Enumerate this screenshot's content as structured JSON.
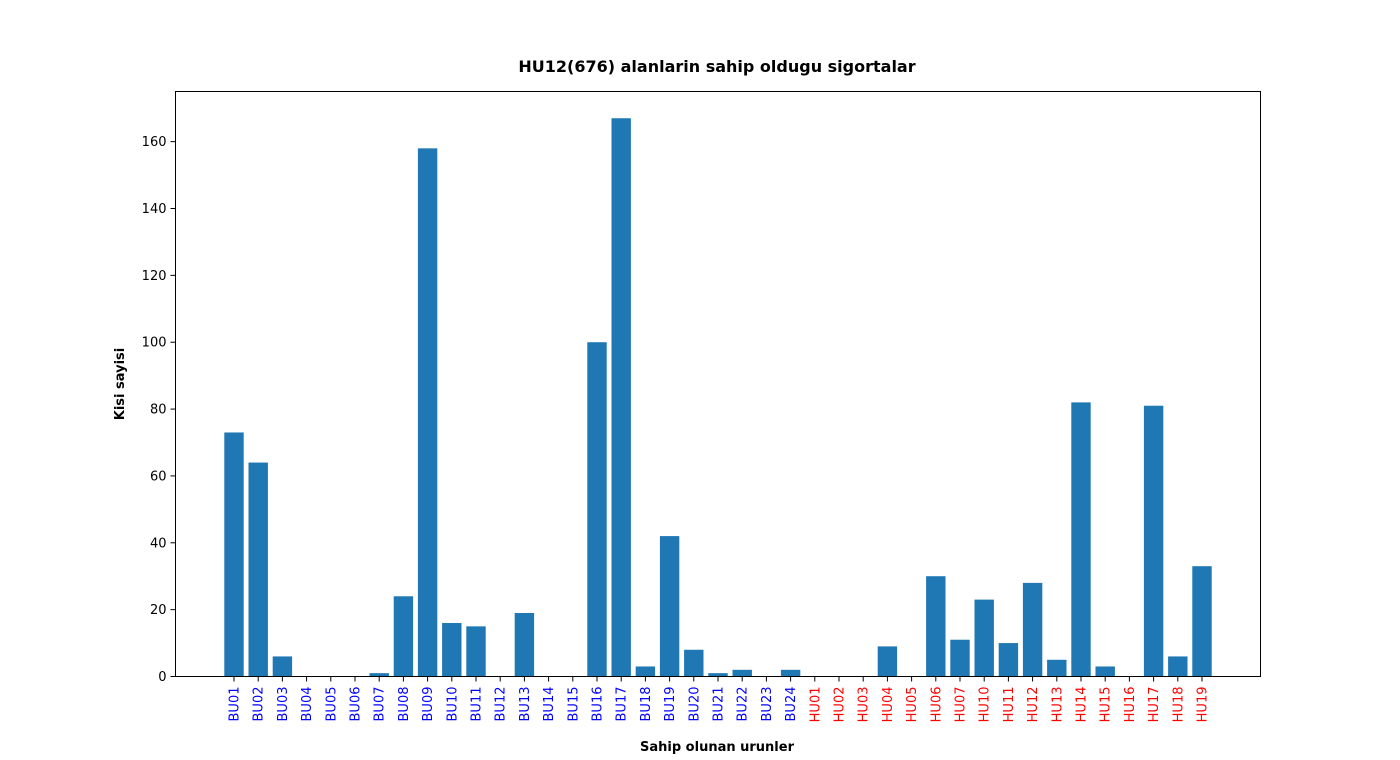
{
  "chart_data": {
    "type": "bar",
    "title": "HU12(676) alanlarin sahip oldugu sigortalar",
    "xlabel": "Sahip olunan urunler",
    "ylabel": "Kisi sayisi",
    "ylim": [
      0,
      175
    ],
    "yticks": [
      0,
      20,
      40,
      60,
      80,
      100,
      120,
      140,
      160
    ],
    "grid": false,
    "bar_color": "#1f77b4",
    "category_colors": {
      "BU": "#0000ff",
      "HU": "#ff0000"
    },
    "categories": [
      "BU01",
      "BU02",
      "BU03",
      "BU04",
      "BU05",
      "BU06",
      "BU07",
      "BU08",
      "BU09",
      "BU10",
      "BU11",
      "BU12",
      "BU13",
      "BU14",
      "BU15",
      "BU16",
      "BU17",
      "BU18",
      "BU19",
      "BU20",
      "BU21",
      "BU22",
      "BU23",
      "BU24",
      "HU01",
      "HU02",
      "HU03",
      "HU04",
      "HU05",
      "HU06",
      "HU07",
      "HU10",
      "HU11",
      "HU12",
      "HU13",
      "HU14",
      "HU15",
      "HU16",
      "HU17",
      "HU18",
      "HU19"
    ],
    "values": [
      73,
      64,
      6,
      0,
      0,
      0,
      1,
      24,
      158,
      16,
      15,
      0,
      19,
      0,
      0,
      100,
      167,
      3,
      42,
      8,
      1,
      2,
      0,
      2,
      0,
      0,
      0,
      9,
      0,
      30,
      11,
      23,
      10,
      28,
      5,
      82,
      3,
      0,
      81,
      6,
      33
    ]
  }
}
